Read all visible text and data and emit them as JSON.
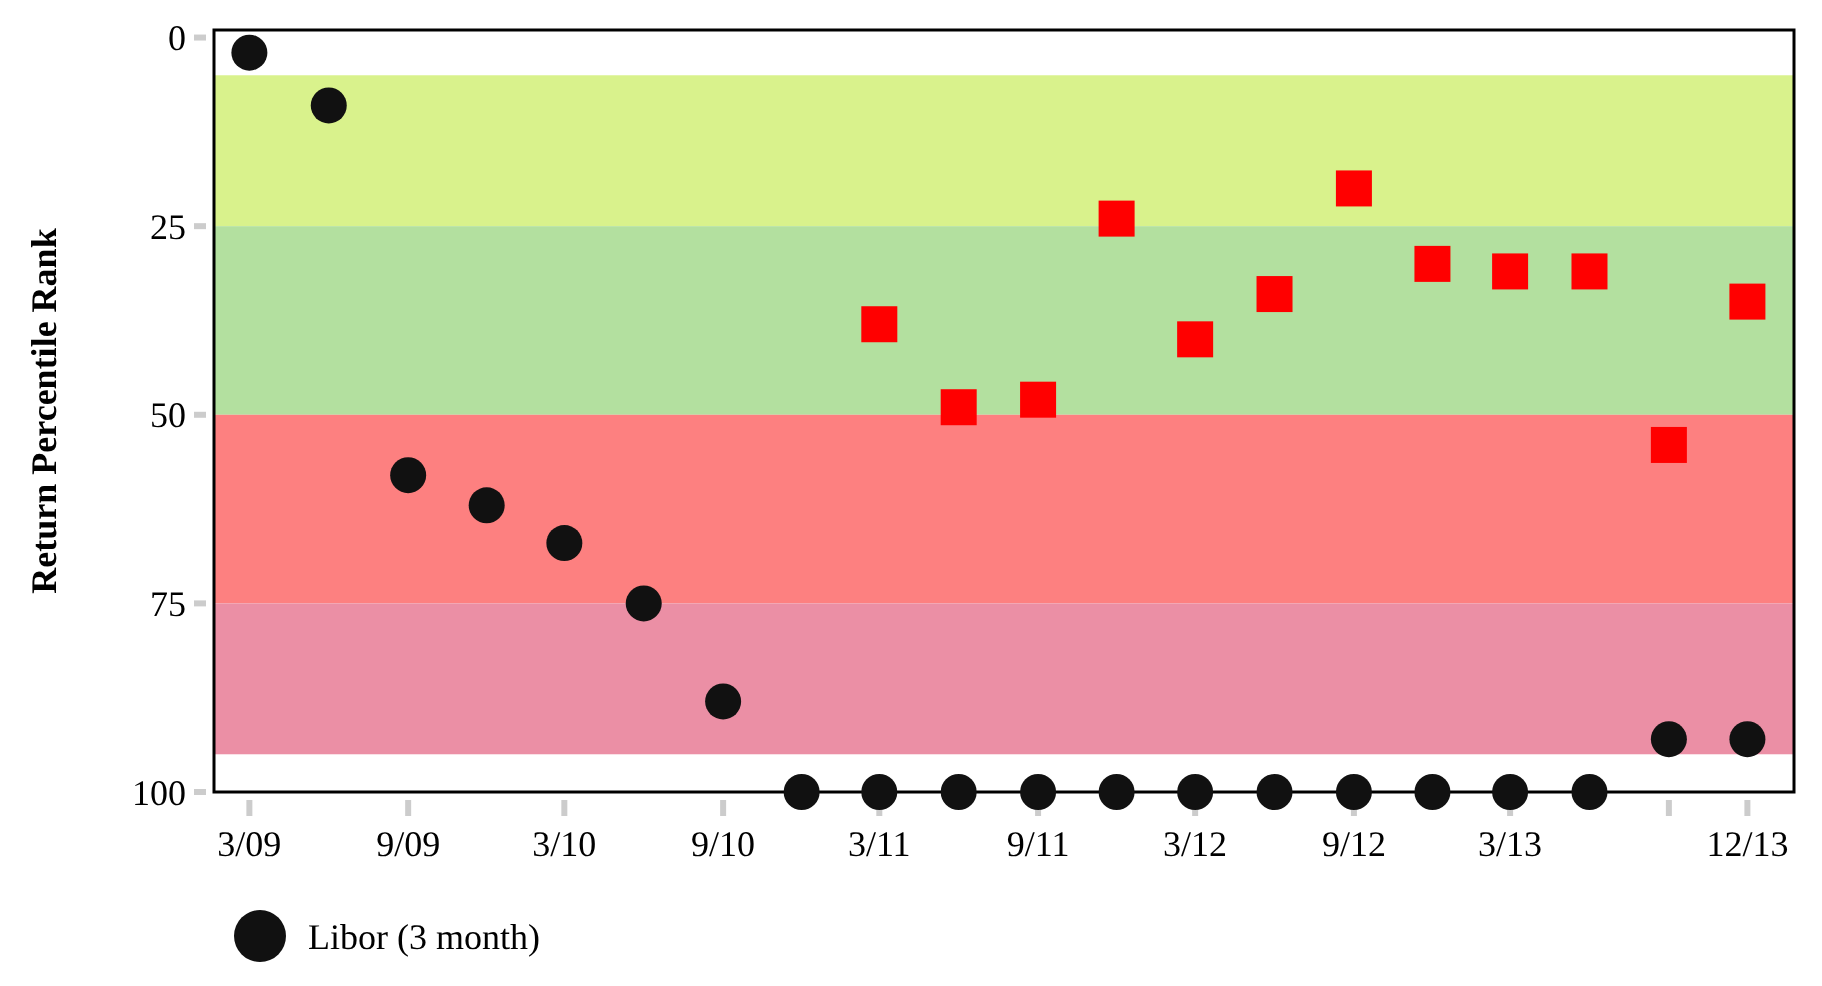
{
  "chart_data": {
    "type": "scatter",
    "ylabel": "Return Percentile Rank",
    "xlim": [
      "2009-01-19",
      "2014-01-24"
    ],
    "ylim": [
      100,
      -1
    ],
    "yticks": [
      0,
      25,
      50,
      75,
      100
    ],
    "xticks": [
      {
        "value": "2009-03",
        "label": "3/09"
      },
      {
        "value": "2009-09",
        "label": "9/09"
      },
      {
        "value": "2010-03",
        "label": "3/10"
      },
      {
        "value": "2010-09",
        "label": "9/10"
      },
      {
        "value": "2011-03",
        "label": "3/11"
      },
      {
        "value": "2011-09",
        "label": "9/11"
      },
      {
        "value": "2012-03",
        "label": "3/12"
      },
      {
        "value": "2012-09",
        "label": "9/12"
      },
      {
        "value": "2013-03",
        "label": "3/13"
      },
      {
        "value": "2013-09",
        "label": null
      },
      {
        "value": "2013-12",
        "label": "12/13"
      }
    ],
    "bands": [
      {
        "axis": "y",
        "from": 5,
        "to": 25,
        "color": "#d9f28c"
      },
      {
        "axis": "y",
        "from": 25,
        "to": 50,
        "color": "#b3e09f"
      },
      {
        "axis": "y",
        "from": 50,
        "to": 75,
        "color": "#fd8080"
      },
      {
        "axis": "y",
        "from": 75,
        "to": 95,
        "color": "#eb8fa5"
      }
    ],
    "legend": "bottom",
    "grid": false,
    "series": [
      {
        "color": "#ff0000",
        "marker": "square",
        "x": [
          "2011-03",
          "2011-06",
          "2011-09",
          "2011-12",
          "2012-03",
          "2012-06",
          "2012-09",
          "2012-12",
          "2013-03",
          "2013-06",
          "2013-09",
          "2013-12"
        ],
        "values": [
          38,
          49,
          48,
          24,
          40,
          34,
          20,
          30,
          31,
          31,
          54,
          35
        ]
      },
      {
        "name": "Libor (3 month)",
        "color": "#111111",
        "marker": "circle",
        "x": [
          "2009-03",
          "2009-06",
          "2009-09",
          "2009-12",
          "2010-03",
          "2010-06",
          "2010-09",
          "2010-12",
          "2011-03",
          "2011-06",
          "2011-09",
          "2011-12",
          "2012-03",
          "2012-06",
          "2012-09",
          "2012-12",
          "2013-03",
          "2013-06",
          "2013-09",
          "2013-12"
        ],
        "values": [
          2,
          9,
          58,
          62,
          67,
          75,
          88,
          100,
          100,
          100,
          100,
          100,
          100,
          100,
          100,
          100,
          100,
          100,
          93,
          93
        ]
      }
    ]
  }
}
